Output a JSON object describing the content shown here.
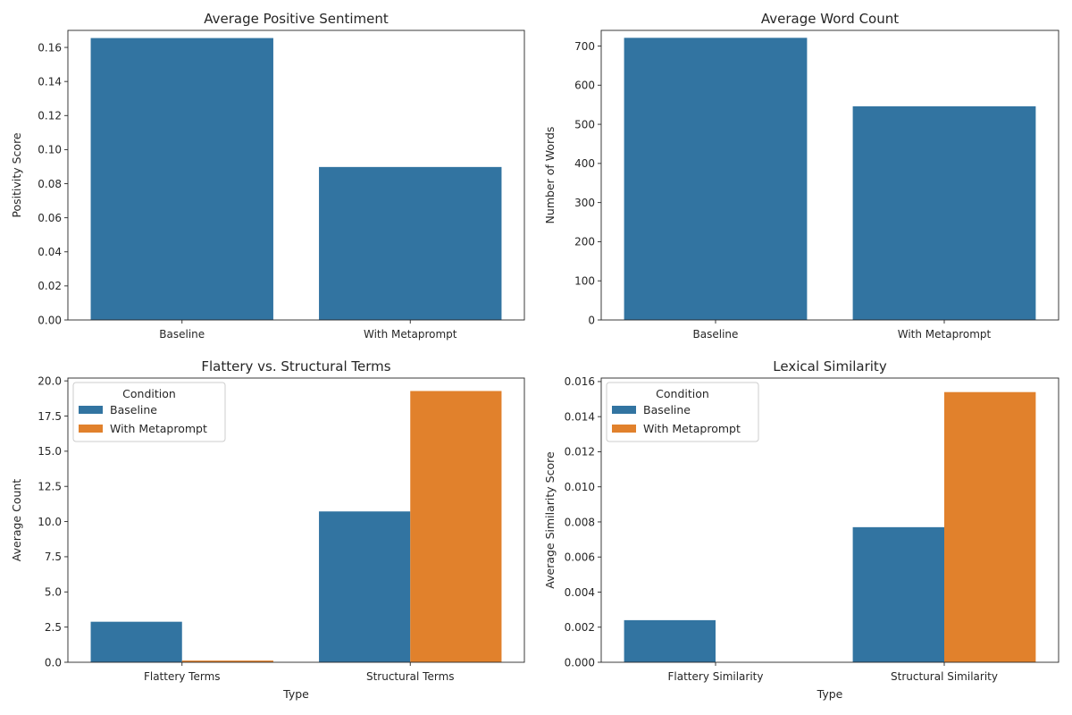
{
  "palette": {
    "series_0": "#3274a1",
    "series_1": "#e1812c"
  },
  "chart_data": [
    {
      "id": "sentiment",
      "type": "bar",
      "title": "Average Positive Sentiment",
      "xlabel": "",
      "ylabel": "Positivity Score",
      "categories": [
        "Baseline",
        "With Metaprompt"
      ],
      "series": [
        {
          "values": [
            0.1655,
            0.0898
          ]
        }
      ],
      "ylim": [
        0,
        0.17
      ],
      "yticks": [
        0,
        0.02,
        0.04,
        0.06,
        0.08,
        0.1,
        0.12,
        0.14,
        0.16
      ],
      "ytick_labels": [
        "0.00",
        "0.02",
        "0.04",
        "0.06",
        "0.08",
        "0.10",
        "0.12",
        "0.14",
        "0.16"
      ],
      "grid": false,
      "legend": null
    },
    {
      "id": "wordcount",
      "type": "bar",
      "title": "Average Word Count",
      "xlabel": "",
      "ylabel": "Number of Words",
      "categories": [
        "Baseline",
        "With Metaprompt"
      ],
      "series": [
        {
          "values": [
            721,
            546
          ]
        }
      ],
      "ylim": [
        0,
        740
      ],
      "yticks": [
        0,
        100,
        200,
        300,
        400,
        500,
        600,
        700
      ],
      "ytick_labels": [
        "0",
        "100",
        "200",
        "300",
        "400",
        "500",
        "600",
        "700"
      ],
      "grid": false,
      "legend": null
    },
    {
      "id": "terms",
      "type": "bar",
      "title": "Flattery vs. Structural Terms",
      "xlabel": "Type",
      "ylabel": "Average Count",
      "categories": [
        "Flattery Terms",
        "Structural Terms"
      ],
      "series": [
        {
          "name": "Baseline",
          "values": [
            2.88,
            10.72
          ]
        },
        {
          "name": "With Metaprompt",
          "values": [
            0.12,
            19.28
          ]
        }
      ],
      "ylim": [
        0,
        20.2
      ],
      "yticks": [
        0,
        2.5,
        5,
        7.5,
        10,
        12.5,
        15,
        17.5,
        20
      ],
      "ytick_labels": [
        "0.0",
        "2.5",
        "5.0",
        "7.5",
        "10.0",
        "12.5",
        "15.0",
        "17.5",
        "20.0"
      ],
      "grid": false,
      "legend": {
        "title": "Condition",
        "placement": "top-left"
      }
    },
    {
      "id": "similarity",
      "type": "bar",
      "title": "Lexical Similarity",
      "xlabel": "Type",
      "ylabel": "Average Similarity Score",
      "categories": [
        "Flattery Similarity",
        "Structural Similarity"
      ],
      "series": [
        {
          "name": "Baseline",
          "values": [
            0.0024,
            0.0077
          ]
        },
        {
          "name": "With Metaprompt",
          "values": [
            0.0,
            0.0154
          ]
        }
      ],
      "ylim": [
        0,
        0.0162
      ],
      "yticks": [
        0,
        0.002,
        0.004,
        0.006,
        0.008,
        0.01,
        0.012,
        0.014,
        0.016
      ],
      "ytick_labels": [
        "0.000",
        "0.002",
        "0.004",
        "0.006",
        "0.008",
        "0.010",
        "0.012",
        "0.014",
        "0.016"
      ],
      "grid": false,
      "legend": {
        "title": "Condition",
        "placement": "top-left"
      }
    }
  ]
}
